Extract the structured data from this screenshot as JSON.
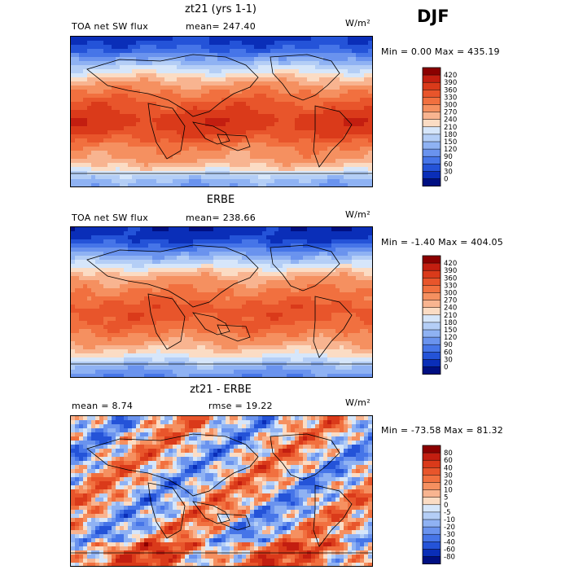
{
  "season": "DJF",
  "chart_data": [
    {
      "type": "heatmap",
      "title": "zt21 (yrs 1-1)",
      "variable": "TOA net SW flux",
      "stat_text": "mean= 247.40",
      "units": "W/m²",
      "minmax_text": "Min =   0.00 Max = 435.19",
      "colorbar_levels": [
        "420",
        "390",
        "360",
        "330",
        "300",
        "270",
        "240",
        "210",
        "180",
        "150",
        "120",
        "90",
        "60",
        "30",
        "0"
      ],
      "colorbar_colors": [
        "#8b0000",
        "#c31e10",
        "#da3a1a",
        "#e8552b",
        "#f1703f",
        "#f59060",
        "#f8b490",
        "#fbdcc4",
        "#d6e6fa",
        "#b4cef6",
        "#8fb2f3",
        "#6a93ee",
        "#4675e8",
        "#2453d8",
        "#0a2eb8",
        "#000f82"
      ],
      "lat_profile": [
        20,
        40,
        70,
        110,
        150,
        190,
        230,
        265,
        290,
        310,
        330,
        350,
        365,
        380,
        375,
        360,
        340,
        310,
        290,
        280,
        255,
        215,
        170,
        135,
        120
      ],
      "mean": 247.4,
      "min": 0.0,
      "max": 435.19
    },
    {
      "type": "heatmap",
      "title": "ERBE",
      "variable": "TOA net SW flux",
      "stat_text": "mean= 238.66",
      "units": "W/m²",
      "minmax_text": "Min =  -1.40 Max = 404.05",
      "colorbar_levels": [
        "420",
        "390",
        "360",
        "330",
        "300",
        "270",
        "240",
        "210",
        "180",
        "150",
        "120",
        "90",
        "60",
        "30",
        "0"
      ],
      "colorbar_colors": [
        "#8b0000",
        "#c31e10",
        "#da3a1a",
        "#e8552b",
        "#f1703f",
        "#f59060",
        "#f8b490",
        "#fbdcc4",
        "#d6e6fa",
        "#b4cef6",
        "#8fb2f3",
        "#6a93ee",
        "#4675e8",
        "#2453d8",
        "#0a2eb8",
        "#000f82"
      ],
      "lat_profile": [
        10,
        20,
        40,
        80,
        120,
        160,
        200,
        240,
        270,
        290,
        305,
        320,
        335,
        345,
        340,
        330,
        315,
        295,
        275,
        250,
        220,
        180,
        140,
        110,
        90
      ],
      "mean": 238.66,
      "min": -1.4,
      "max": 404.05
    },
    {
      "type": "heatmap",
      "title": "zt21 - ERBE",
      "variable": "",
      "stat_text": "mean =    8.74",
      "stat2_text": "rmse =  19.22",
      "units": "W/m²",
      "minmax_text": "Min = -73.58 Max =  81.32",
      "colorbar_levels": [
        "80",
        "60",
        "40",
        "30",
        "20",
        "10",
        "5",
        "0",
        "-5",
        "-10",
        "-20",
        "-30",
        "-40",
        "-60",
        "-80"
      ],
      "colorbar_colors": [
        "#8b0000",
        "#c31e10",
        "#da3a1a",
        "#e8552b",
        "#f1703f",
        "#f59060",
        "#f8b490",
        "#fbdcc4",
        "#d6e6fa",
        "#b4cef6",
        "#8fb2f3",
        "#6a93ee",
        "#4675e8",
        "#2453d8",
        "#0a2eb8",
        "#000f82"
      ],
      "mean": 8.74,
      "rmse": 19.22,
      "min": -73.58,
      "max": 81.32
    }
  ]
}
